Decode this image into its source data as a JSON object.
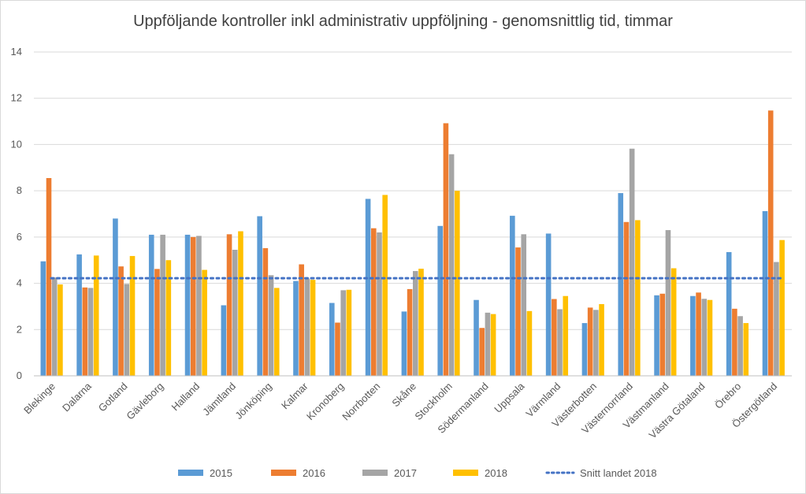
{
  "chart_data": {
    "type": "bar",
    "title": "Uppföljande kontroller inkl administrativ uppföljning - genomsnittlig tid, timmar",
    "xlabel": "",
    "ylabel": "",
    "ylim": [
      0,
      14
    ],
    "yticks": [
      0,
      2,
      4,
      6,
      8,
      10,
      12,
      14
    ],
    "grid": true,
    "legend_position": "bottom",
    "categories": [
      "Blekinge",
      "Dalarna",
      "Gotland",
      "Gävleborg",
      "Halland",
      "Jämtland",
      "Jönköping",
      "Kalmar",
      "Kronoberg",
      "Norrbotten",
      "Skåne",
      "Stockholm",
      "Södermanland",
      "Uppsala",
      "Värmland",
      "Västerbotten",
      "Västernorrland",
      "Västmanland",
      "Västra Götaland",
      "Örebro",
      "Östergötland"
    ],
    "series": [
      {
        "name": "2015",
        "color": "#5b9bd5",
        "values": [
          4.95,
          5.25,
          6.8,
          6.1,
          6.1,
          3.05,
          6.9,
          4.1,
          3.15,
          7.65,
          2.78,
          6.48,
          3.28,
          6.92,
          6.15,
          2.28,
          7.9,
          3.48,
          3.45,
          5.35,
          7.12
        ]
      },
      {
        "name": "2016",
        "color": "#ed7d31",
        "values": [
          8.55,
          3.82,
          4.73,
          4.62,
          6.0,
          6.12,
          5.52,
          4.82,
          2.3,
          6.38,
          3.75,
          10.92,
          2.07,
          5.55,
          3.32,
          2.95,
          6.65,
          3.55,
          3.6,
          2.9,
          11.47
        ]
      },
      {
        "name": "2017",
        "color": "#a5a5a5",
        "values": [
          4.25,
          3.8,
          3.97,
          6.1,
          6.05,
          5.45,
          4.35,
          4.2,
          3.7,
          6.2,
          4.53,
          9.58,
          2.73,
          6.12,
          2.88,
          2.85,
          9.82,
          6.3,
          3.33,
          2.58,
          4.92
        ]
      },
      {
        "name": "2018",
        "color": "#ffc000",
        "values": [
          3.95,
          5.2,
          5.18,
          5.0,
          4.58,
          6.25,
          3.8,
          4.15,
          3.72,
          7.82,
          4.63,
          8.0,
          2.67,
          2.8,
          3.45,
          3.1,
          6.73,
          4.65,
          3.28,
          2.28,
          5.87
        ]
      }
    ],
    "reference_line": {
      "name": "Snitt landet 2018",
      "value": 4.22,
      "color": "#4472c4",
      "style": "dotted"
    }
  }
}
